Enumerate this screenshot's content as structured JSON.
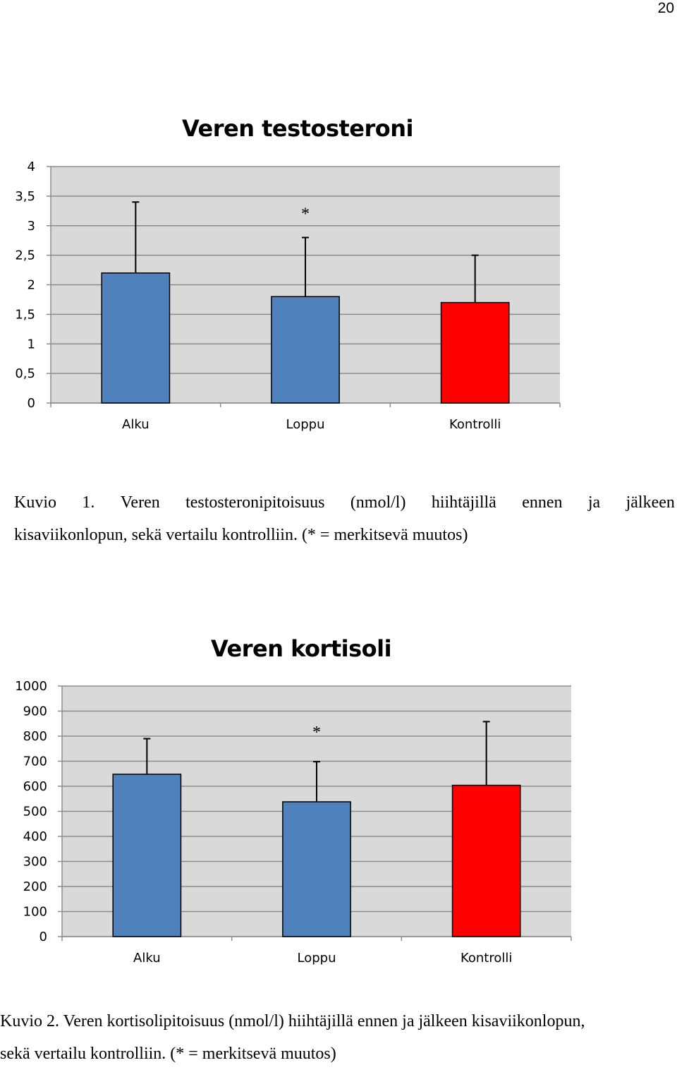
{
  "page_number": "20",
  "colors": {
    "plot_background": "#d9d9d9",
    "gridline": "#8c8c8c",
    "bar_blue": "#4f81bd",
    "bar_red": "#ff0000"
  },
  "chart_data": [
    {
      "type": "bar",
      "title": "Veren testosteroni",
      "categories": [
        "Alku",
        "Loppu",
        "Kontrolli"
      ],
      "values": [
        2.2,
        1.8,
        1.7
      ],
      "error_upper": [
        3.4,
        2.8,
        2.5
      ],
      "bar_colors": [
        "#4f81bd",
        "#4f81bd",
        "#ff0000"
      ],
      "annotations": [
        {
          "category": "Loppu",
          "text": "*"
        }
      ],
      "ylim": [
        0,
        4
      ],
      "yticks": [
        "0",
        "0,5",
        "1",
        "1,5",
        "2",
        "2,5",
        "3",
        "3,5",
        "4"
      ],
      "xlabel": "",
      "ylabel": "",
      "grid": true,
      "legend": "none"
    },
    {
      "type": "bar",
      "title": "Veren kortisoli",
      "categories": [
        "Alku",
        "Loppu",
        "Kontrolli"
      ],
      "values": [
        648,
        538,
        604
      ],
      "error_upper": [
        790,
        698,
        858
      ],
      "bar_colors": [
        "#4f81bd",
        "#4f81bd",
        "#ff0000"
      ],
      "annotations": [
        {
          "category": "Loppu",
          "text": "*"
        }
      ],
      "ylim": [
        0,
        1000
      ],
      "yticks": [
        "0",
        "100",
        "200",
        "300",
        "400",
        "500",
        "600",
        "700",
        "800",
        "900",
        "1000"
      ],
      "xlabel": "",
      "ylabel": "",
      "grid": true,
      "legend": "none"
    }
  ],
  "captions": {
    "fig1_line1_words": [
      "Kuvio",
      "1.",
      "Veren",
      "testosteronipitoisuus",
      "(nmol/l)",
      "hiihtäjillä",
      "ennen",
      "ja",
      "jälkeen"
    ],
    "fig1_line2": "kisaviikonlopun, sekä vertailu kontrolliin. (* = merkitsevä muutos)",
    "fig2_line1": "Kuvio 2. Veren kortisolipitoisuus (nmol/l) hiihtäjillä ennen ja jälkeen kisaviikonlopun,",
    "fig2_line2": "sekä vertailu kontrolliin. (* = merkitsevä muutos)"
  }
}
